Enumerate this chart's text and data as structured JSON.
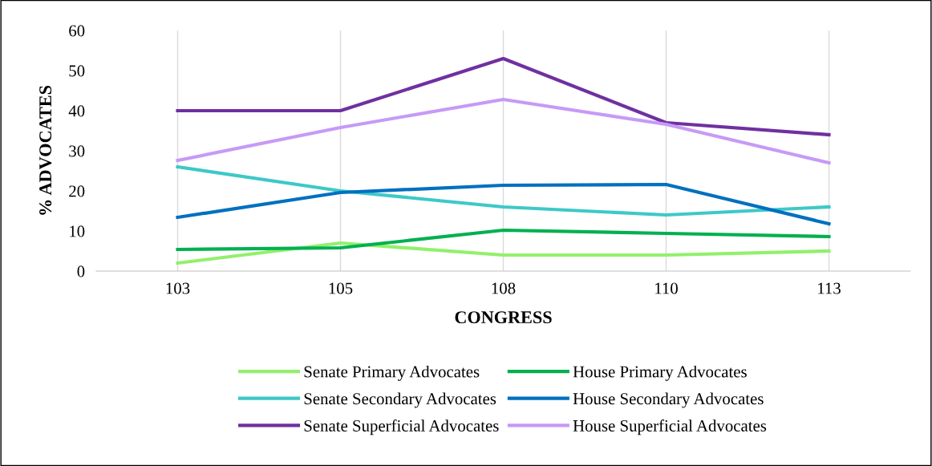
{
  "chart_data": {
    "type": "line",
    "xlabel": "CONGRESS",
    "ylabel": "% ADVOCATES",
    "categories": [
      "103",
      "105",
      "108",
      "110",
      "113"
    ],
    "series": [
      {
        "name": "Senate Primary Advocates",
        "color": "#92f06c",
        "values": [
          2,
          7,
          4,
          4,
          5
        ]
      },
      {
        "name": "House Primary Advocates",
        "color": "#00b050",
        "values": [
          5.4,
          5.8,
          10.2,
          9.4,
          8.6
        ]
      },
      {
        "name": "Senate Secondary Advocates",
        "color": "#3ec8c8",
        "values": [
          26,
          20,
          16,
          14,
          16
        ]
      },
      {
        "name": "House Secondary Advocates",
        "color": "#0070c0",
        "values": [
          13.4,
          19.6,
          21.4,
          21.6,
          11.8
        ]
      },
      {
        "name": "Senate Superficial Advocates",
        "color": "#7030a0",
        "values": [
          40,
          40,
          53,
          37,
          34
        ]
      },
      {
        "name": "House Superficial Advocates",
        "color": "#c69af6",
        "values": [
          27.6,
          35.8,
          42.8,
          36.6,
          27
        ]
      }
    ],
    "ylim": [
      0,
      60
    ],
    "yticks": [
      0,
      10,
      20,
      30,
      40,
      50,
      60
    ],
    "grid": "x",
    "legend": "bottom",
    "marker": "none",
    "line_style": "solid"
  }
}
